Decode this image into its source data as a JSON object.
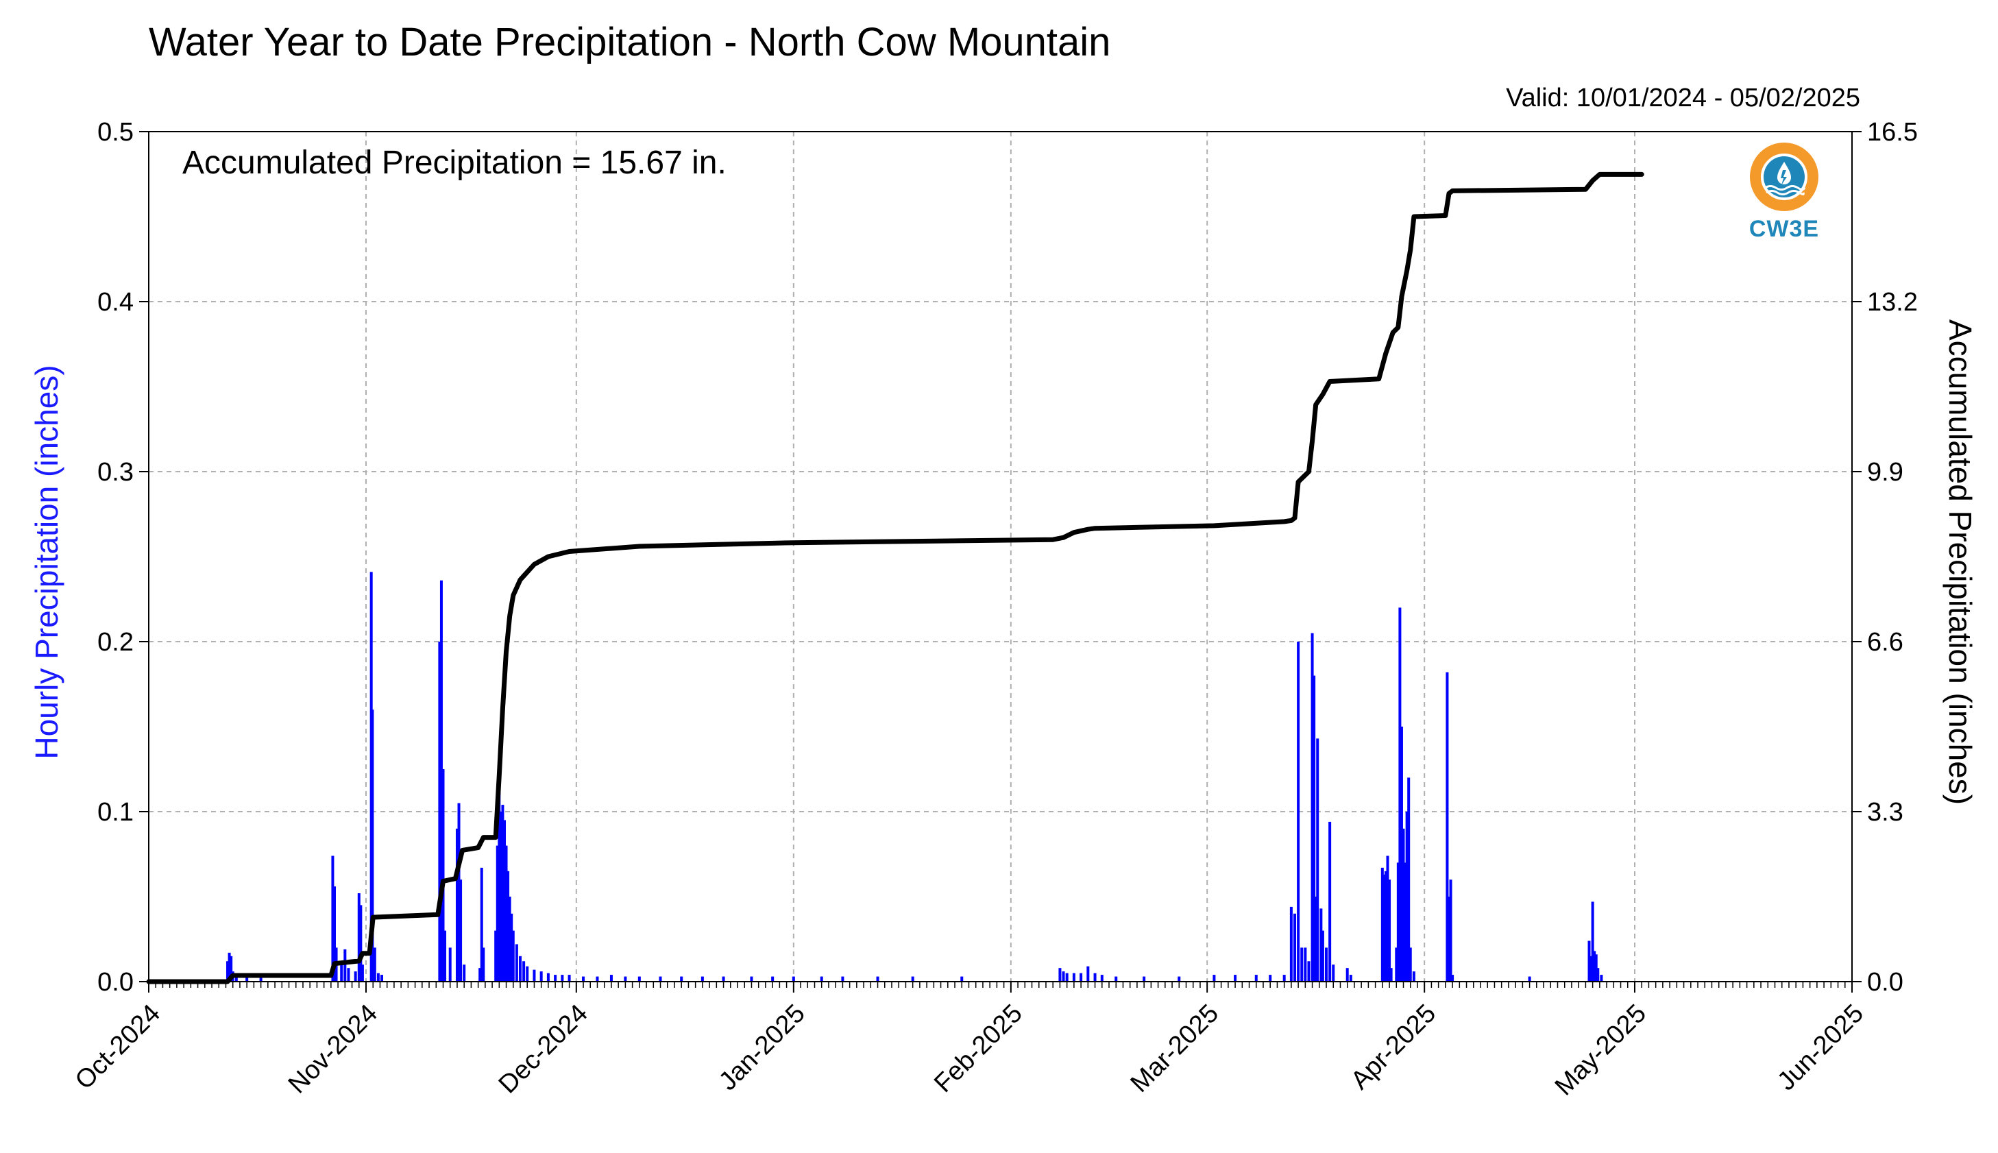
{
  "chart_data": {
    "type": "bar",
    "title": "Water Year to Date Precipitation - North Cow Mountain",
    "valid_text": "Valid: 10/01/2024 - 05/02/2025",
    "annotation": "Accumulated Precipitation = 15.67 in.",
    "logo_text": "CW3E",
    "ylabel_left": "Hourly Precipitation (inches)",
    "ylabel_right": "Accumulated Precipitation (inches)",
    "x_range": [
      "2024-10-01",
      "2025-06-01"
    ],
    "x_tick_labels": [
      "Oct-2024",
      "Nov-2024",
      "Dec-2024",
      "Jan-2025",
      "Feb-2025",
      "Mar-2025",
      "Apr-2025",
      "May-2025",
      "Jun-2025"
    ],
    "x_tick_dates": [
      "2024-10-01",
      "2024-11-01",
      "2024-12-01",
      "2025-01-01",
      "2025-02-01",
      "2025-03-01",
      "2025-04-01",
      "2025-05-01",
      "2025-06-01"
    ],
    "ylim_left": [
      0,
      0.5
    ],
    "ylim_right": [
      0,
      16.5
    ],
    "y_ticks_left": [
      "0.0",
      "0.1",
      "0.2",
      "0.3",
      "0.4",
      "0.5"
    ],
    "y_ticks_right": [
      "0.0",
      "3.3",
      "6.6",
      "9.9",
      "13.2",
      "16.5"
    ],
    "grid": true,
    "colors": {
      "hourly": "#0000ff",
      "accumulated": "#000000",
      "grid": "#b0b0b0"
    },
    "series": [
      {
        "name": "Hourly Precipitation (inches)",
        "axis": "left",
        "type": "bar",
        "points": [
          [
            "2024-10-12T06",
            0.012
          ],
          [
            "2024-10-12T12",
            0.017
          ],
          [
            "2024-10-12T18",
            0.015
          ],
          [
            "2024-10-13T00",
            0.006
          ],
          [
            "2024-10-13T12",
            0.004
          ],
          [
            "2024-10-15T00",
            0.003
          ],
          [
            "2024-10-17T00",
            0.004
          ],
          [
            "2024-10-27T06",
            0.074
          ],
          [
            "2024-10-27T12",
            0.056
          ],
          [
            "2024-10-27T18",
            0.02
          ],
          [
            "2024-10-28T12",
            0.012
          ],
          [
            "2024-10-29T00",
            0.019
          ],
          [
            "2024-10-29T12",
            0.008
          ],
          [
            "2024-10-30T12",
            0.006
          ],
          [
            "2024-10-31T00",
            0.052
          ],
          [
            "2024-10-31T06",
            0.045
          ],
          [
            "2024-10-31T12",
            0.01
          ],
          [
            "2024-11-01T18",
            0.241
          ],
          [
            "2024-11-01T22",
            0.16
          ],
          [
            "2024-11-02T06",
            0.02
          ],
          [
            "2024-11-02T18",
            0.005
          ],
          [
            "2024-11-03T06",
            0.004
          ],
          [
            "2024-11-11T12",
            0.2
          ],
          [
            "2024-11-11T18",
            0.236
          ],
          [
            "2024-11-12T00",
            0.125
          ],
          [
            "2024-11-12T06",
            0.03
          ],
          [
            "2024-11-13T00",
            0.02
          ],
          [
            "2024-11-14T00",
            0.09
          ],
          [
            "2024-11-14T06",
            0.105
          ],
          [
            "2024-11-14T12",
            0.06
          ],
          [
            "2024-11-15T00",
            0.01
          ],
          [
            "2024-11-17T06",
            0.008
          ],
          [
            "2024-11-17T12",
            0.067
          ],
          [
            "2024-11-17T18",
            0.02
          ],
          [
            "2024-11-19T12",
            0.03
          ],
          [
            "2024-11-19T18",
            0.08
          ],
          [
            "2024-11-20T00",
            0.127
          ],
          [
            "2024-11-20T06",
            0.1
          ],
          [
            "2024-11-20T12",
            0.104
          ],
          [
            "2024-11-20T18",
            0.095
          ],
          [
            "2024-11-21T00",
            0.08
          ],
          [
            "2024-11-21T06",
            0.065
          ],
          [
            "2024-11-21T12",
            0.05
          ],
          [
            "2024-11-21T18",
            0.04
          ],
          [
            "2024-11-22T00",
            0.03
          ],
          [
            "2024-11-22T12",
            0.022
          ],
          [
            "2024-11-23T00",
            0.015
          ],
          [
            "2024-11-23T12",
            0.012
          ],
          [
            "2024-11-24T00",
            0.009
          ],
          [
            "2024-11-25T00",
            0.007
          ],
          [
            "2024-11-26T00",
            0.006
          ],
          [
            "2024-11-27T00",
            0.005
          ],
          [
            "2024-11-28T00",
            0.004
          ],
          [
            "2024-11-29T00",
            0.004
          ],
          [
            "2024-11-30T00",
            0.004
          ],
          [
            "2024-12-02T00",
            0.003
          ],
          [
            "2024-12-04T00",
            0.003
          ],
          [
            "2024-12-06T00",
            0.004
          ],
          [
            "2024-12-08T00",
            0.003
          ],
          [
            "2024-12-10T00",
            0.003
          ],
          [
            "2024-12-13T00",
            0.003
          ],
          [
            "2024-12-16T00",
            0.003
          ],
          [
            "2024-12-19T00",
            0.003
          ],
          [
            "2024-12-22T00",
            0.003
          ],
          [
            "2024-12-26T00",
            0.003
          ],
          [
            "2024-12-29T00",
            0.003
          ],
          [
            "2025-01-01T00",
            0.003
          ],
          [
            "2025-01-05T00",
            0.003
          ],
          [
            "2025-01-08T00",
            0.003
          ],
          [
            "2025-01-13T00",
            0.003
          ],
          [
            "2025-01-18T00",
            0.003
          ],
          [
            "2025-01-25T00",
            0.003
          ],
          [
            "2025-02-08T00",
            0.008
          ],
          [
            "2025-02-08T12",
            0.006
          ],
          [
            "2025-02-09T00",
            0.005
          ],
          [
            "2025-02-10T00",
            0.005
          ],
          [
            "2025-02-11T00",
            0.005
          ],
          [
            "2025-02-12T00",
            0.009
          ],
          [
            "2025-02-13T00",
            0.005
          ],
          [
            "2025-02-14T00",
            0.004
          ],
          [
            "2025-02-16T00",
            0.003
          ],
          [
            "2025-02-20T00",
            0.003
          ],
          [
            "2025-02-25T00",
            0.003
          ],
          [
            "2025-03-02T00",
            0.004
          ],
          [
            "2025-03-05T00",
            0.004
          ],
          [
            "2025-03-08T00",
            0.004
          ],
          [
            "2025-03-10T00",
            0.004
          ],
          [
            "2025-03-12T00",
            0.004
          ],
          [
            "2025-03-13T00",
            0.044
          ],
          [
            "2025-03-13T12",
            0.04
          ],
          [
            "2025-03-14T00",
            0.2
          ],
          [
            "2025-03-14T12",
            0.02
          ],
          [
            "2025-03-15T00",
            0.02
          ],
          [
            "2025-03-15T12",
            0.012
          ],
          [
            "2025-03-16T00",
            0.205
          ],
          [
            "2025-03-16T06",
            0.18
          ],
          [
            "2025-03-16T12",
            0.05
          ],
          [
            "2025-03-16T18",
            0.143
          ],
          [
            "2025-03-17T06",
            0.043
          ],
          [
            "2025-03-17T12",
            0.03
          ],
          [
            "2025-03-18T00",
            0.02
          ],
          [
            "2025-03-18T12",
            0.094
          ],
          [
            "2025-03-19T00",
            0.01
          ],
          [
            "2025-03-21T00",
            0.008
          ],
          [
            "2025-03-21T12",
            0.004
          ],
          [
            "2025-03-26T00",
            0.067
          ],
          [
            "2025-03-26T06",
            0.063
          ],
          [
            "2025-03-26T12",
            0.065
          ],
          [
            "2025-03-26T18",
            0.074
          ],
          [
            "2025-03-27T00",
            0.06
          ],
          [
            "2025-03-27T06",
            0.008
          ],
          [
            "2025-03-28T00",
            0.02
          ],
          [
            "2025-03-28T06",
            0.07
          ],
          [
            "2025-03-28T12",
            0.22
          ],
          [
            "2025-03-28T18",
            0.15
          ],
          [
            "2025-03-29T00",
            0.09
          ],
          [
            "2025-03-29T06",
            0.07
          ],
          [
            "2025-03-29T12",
            0.1
          ],
          [
            "2025-03-29T18",
            0.12
          ],
          [
            "2025-03-30T00",
            0.02
          ],
          [
            "2025-03-30T12",
            0.006
          ],
          [
            "2025-04-04T06",
            0.182
          ],
          [
            "2025-04-04T12",
            0.05
          ],
          [
            "2025-04-04T18",
            0.06
          ],
          [
            "2025-04-05T00",
            0.004
          ],
          [
            "2025-04-16T00",
            0.003
          ],
          [
            "2025-04-24T12",
            0.024
          ],
          [
            "2025-04-24T18",
            0.015
          ],
          [
            "2025-04-25T00",
            0.047
          ],
          [
            "2025-04-25T06",
            0.018
          ],
          [
            "2025-04-25T12",
            0.016
          ],
          [
            "2025-04-25T18",
            0.008
          ],
          [
            "2025-04-26T06",
            0.004
          ]
        ]
      },
      {
        "name": "Accumulated Precipitation (inches)",
        "axis": "right",
        "type": "line",
        "points": [
          [
            "2024-10-01",
            0.0
          ],
          [
            "2024-10-12T06",
            0.0
          ],
          [
            "2024-10-13T00",
            0.12
          ],
          [
            "2024-10-27T00",
            0.12
          ],
          [
            "2024-10-27T12",
            0.35
          ],
          [
            "2024-10-31T00",
            0.4
          ],
          [
            "2024-10-31T12",
            0.55
          ],
          [
            "2024-11-01T12",
            0.55
          ],
          [
            "2024-11-02T00",
            1.25
          ],
          [
            "2024-11-11T06",
            1.3
          ],
          [
            "2024-11-12T00",
            1.95
          ],
          [
            "2024-11-13T18",
            2.0
          ],
          [
            "2024-11-14T18",
            2.55
          ],
          [
            "2024-11-17T00",
            2.6
          ],
          [
            "2024-11-17T18",
            2.8
          ],
          [
            "2024-11-19T12",
            2.8
          ],
          [
            "2024-11-20T00",
            4.0
          ],
          [
            "2024-11-20T12",
            5.3
          ],
          [
            "2024-11-21T00",
            6.4
          ],
          [
            "2024-11-21T12",
            7.1
          ],
          [
            "2024-11-22T00",
            7.5
          ],
          [
            "2024-11-23T00",
            7.8
          ],
          [
            "2024-11-25T00",
            8.1
          ],
          [
            "2024-11-27T00",
            8.25
          ],
          [
            "2024-11-30T00",
            8.35
          ],
          [
            "2024-12-10T00",
            8.45
          ],
          [
            "2025-01-01T00",
            8.52
          ],
          [
            "2025-02-07T00",
            8.58
          ],
          [
            "2025-02-08T12",
            8.62
          ],
          [
            "2025-02-10T00",
            8.72
          ],
          [
            "2025-02-12T00",
            8.78
          ],
          [
            "2025-02-13T00",
            8.8
          ],
          [
            "2025-03-02T00",
            8.85
          ],
          [
            "2025-03-12T00",
            8.93
          ],
          [
            "2025-03-13T00",
            8.95
          ],
          [
            "2025-03-13T12",
            9.0
          ],
          [
            "2025-03-14T00",
            9.7
          ],
          [
            "2025-03-15T12",
            9.9
          ],
          [
            "2025-03-16T00",
            10.5
          ],
          [
            "2025-03-16T12",
            11.2
          ],
          [
            "2025-03-17T12",
            11.4
          ],
          [
            "2025-03-18T12",
            11.65
          ],
          [
            "2025-03-25T12",
            11.7
          ],
          [
            "2025-03-26T12",
            12.2
          ],
          [
            "2025-03-27T12",
            12.6
          ],
          [
            "2025-03-28T06",
            12.7
          ],
          [
            "2025-03-28T18",
            13.3
          ],
          [
            "2025-03-29T12",
            13.8
          ],
          [
            "2025-03-30T00",
            14.2
          ],
          [
            "2025-03-30T12",
            14.85
          ],
          [
            "2025-04-04T00",
            14.87
          ],
          [
            "2025-04-04T12",
            15.3
          ],
          [
            "2025-04-05T00",
            15.35
          ],
          [
            "2025-04-24T00",
            15.38
          ],
          [
            "2025-04-25T00",
            15.55
          ],
          [
            "2025-04-26T00",
            15.67
          ],
          [
            "2025-05-02T00",
            15.67
          ]
        ]
      }
    ]
  }
}
